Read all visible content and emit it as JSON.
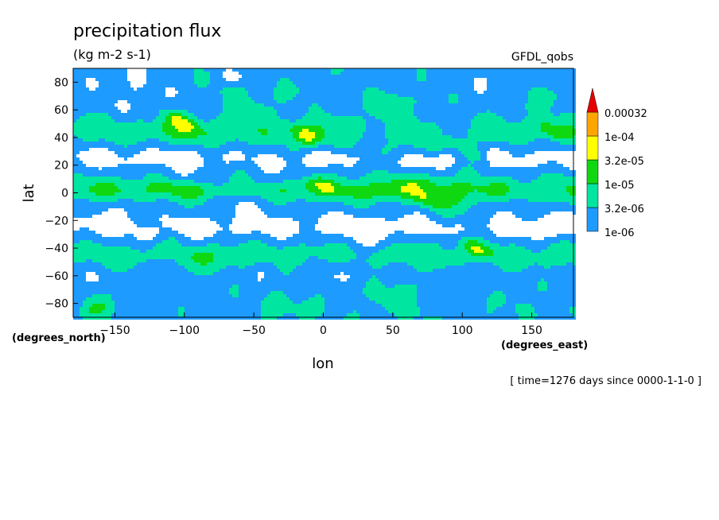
{
  "chart_data": {
    "type": "heatmap",
    "title": "precipitation flux",
    "subtitle": "(kg m-2 s-1)",
    "dataset_label": "GFDL_qobs",
    "xlabel": "lon",
    "ylabel": "lat",
    "x_units": "(degrees_east)",
    "y_units": "(degrees_north)",
    "time_label": "[ time=1276 days since 0000-1-1-0 ]",
    "xlim": [
      -180,
      180
    ],
    "ylim": [
      -90,
      90
    ],
    "x_ticks": [
      -150,
      -100,
      -50,
      0,
      50,
      100,
      150
    ],
    "y_ticks": [
      -80,
      -60,
      -40,
      -20,
      0,
      20,
      40,
      60,
      80
    ],
    "grid": false,
    "legend_position": "right",
    "colorbar": {
      "levels": [
        "1e-06",
        "3.2e-06",
        "1e-05",
        "3.2e-05",
        "1e-04",
        "0.00032"
      ],
      "colors": [
        "#ffffff",
        "#1e9bff",
        "#00e6a0",
        "#10d810",
        "#ffff00",
        "#ffa500",
        "#e60000"
      ]
    }
  }
}
